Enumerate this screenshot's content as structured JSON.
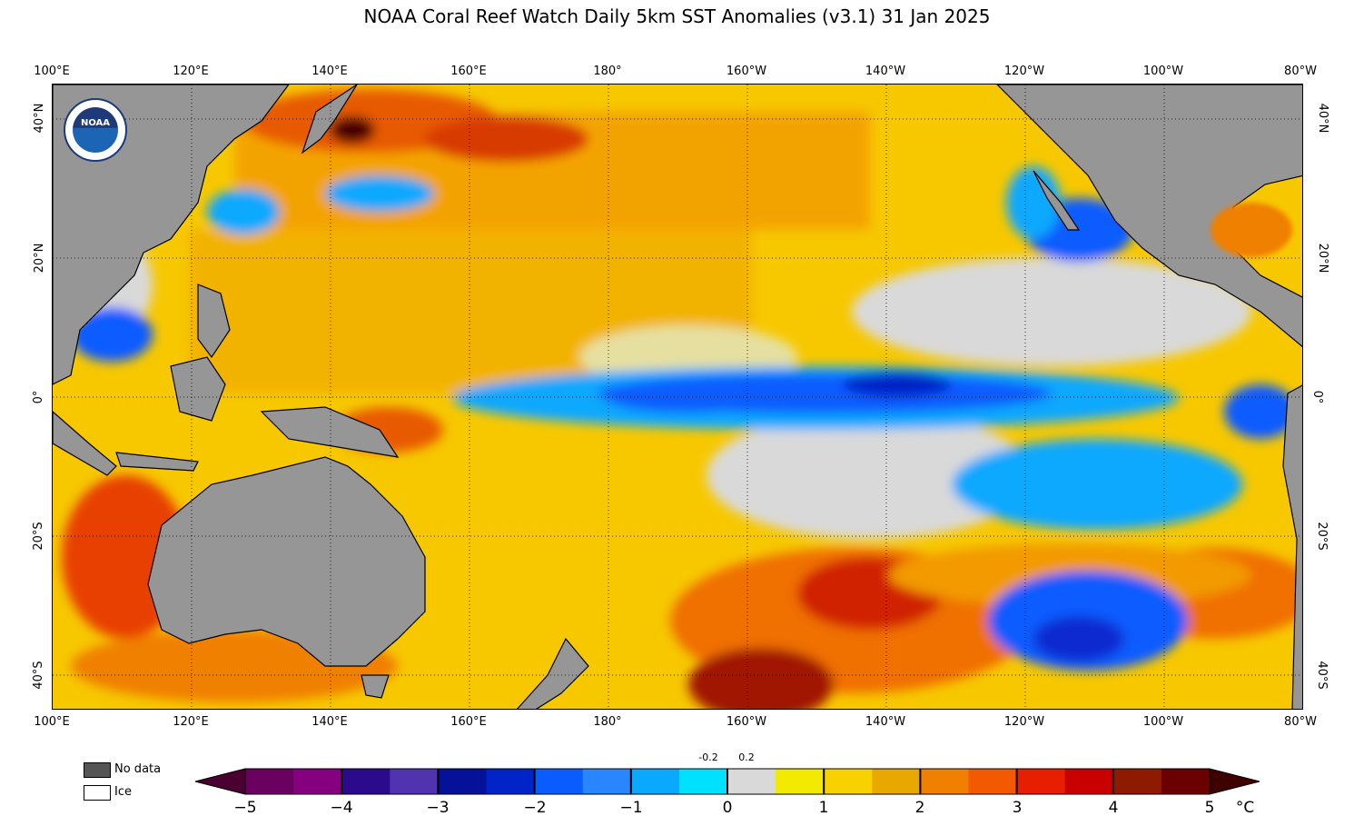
{
  "title": "NOAA Coral Reef Watch Daily 5km SST Anomalies  (v3.1)   31 Jan 2025",
  "logo_text": "NOAA",
  "lon_labels": [
    "100°E",
    "120°E",
    "140°E",
    "160°E",
    "180°",
    "160°W",
    "140°W",
    "120°W",
    "100°W",
    "80°W"
  ],
  "lat_labels": [
    "40°N",
    "20°N",
    "0°",
    "20°S",
    "40°S"
  ],
  "legend": {
    "no_data": "No data",
    "ice": "Ice"
  },
  "colorbar": {
    "ticks": [
      "−5",
      "−4",
      "−3",
      "−2",
      "−1",
      "0",
      "1",
      "2",
      "3",
      "4",
      "5"
    ],
    "small_ticks": [
      "-0.2",
      "0.2"
    ],
    "unit": "°C",
    "colors": [
      "#4a0030",
      "#6a0060",
      "#85007f",
      "#2b0b8c",
      "#5133b0",
      "#06119a",
      "#0024c8",
      "#0a5cff",
      "#2a86ff",
      "#0aa8ff",
      "#00e0ff",
      "#d9d9d9",
      "#f2ea00",
      "#f7d200",
      "#e8a800",
      "#f08000",
      "#f35a00",
      "#e81e00",
      "#c80000",
      "#8e1a00",
      "#6a0000",
      "#3f0000"
    ]
  }
}
